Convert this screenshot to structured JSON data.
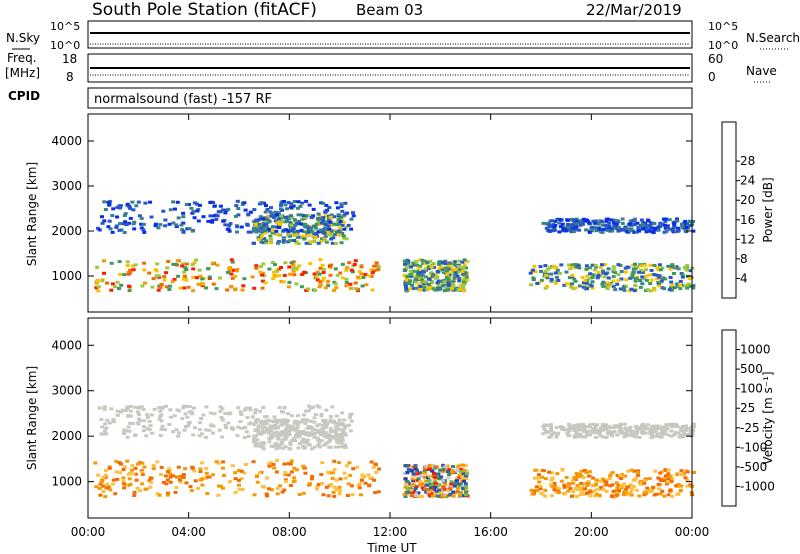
{
  "header": {
    "station": "South Pole Station (fitACF)",
    "beam": "Beam 03",
    "date": "22/Mar/2019"
  },
  "top_panels": {
    "nsky_label": "N.Sky",
    "nsky_ticks": [
      "10^5",
      "10^0"
    ],
    "nsearch_label": "N.Search",
    "nsearch_ticks": [
      "10^5",
      "10^0"
    ],
    "freq_label": "Freq.",
    "freq_unit": "[MHz]",
    "freq_ticks": [
      "18",
      "8"
    ],
    "nave_label": "Nave",
    "nave_ticks": [
      "60",
      "0"
    ],
    "cpid_label": "CPID",
    "cpid_text": "normalsound (fast) -157 RF"
  },
  "chart_data": [
    {
      "type": "heatmap",
      "name": "power",
      "xlabel": "",
      "ylabel": "Slant Range [km]",
      "y_ticks": [
        "1000",
        "2000",
        "3000",
        "4000"
      ],
      "ylim": [
        200,
        4600
      ],
      "xlim_hours": [
        0,
        24
      ],
      "colorbar": {
        "label": "Power [dB]",
        "ticks": [
          "4",
          "8",
          "12",
          "16",
          "20",
          "24",
          "28"
        ],
        "colors": [
          "#0a2ee8",
          "#2a55c8",
          "#3a7f8f",
          "#3f9a5a",
          "#9ec83c",
          "#f5c400",
          "#f59a00",
          "#f56a00",
          "#ff1a00"
        ]
      },
      "echo_regions": [
        {
          "t0": 0.2,
          "t1": 11.5,
          "r0": 700,
          "r1": 1400,
          "level": "high"
        },
        {
          "t0": 6.5,
          "t1": 10.2,
          "r0": 1750,
          "r1": 2400,
          "level": "mid"
        },
        {
          "t0": 0.3,
          "t1": 10.5,
          "r0": 2000,
          "r1": 2700,
          "level": "low"
        },
        {
          "t0": 17.5,
          "t1": 24.0,
          "r0": 700,
          "r1": 1300,
          "level": "mid"
        },
        {
          "t0": 18.0,
          "t1": 24.0,
          "r0": 2000,
          "r1": 2300,
          "level": "low"
        },
        {
          "t0": 12.5,
          "t1": 15.0,
          "r0": 700,
          "r1": 1400,
          "level": "mid"
        }
      ]
    },
    {
      "type": "heatmap",
      "name": "velocity",
      "xlabel": "Time UT",
      "ylabel": "Slant Range [km]",
      "y_ticks": [
        "1000",
        "2000",
        "3000",
        "4000"
      ],
      "x_ticks": [
        "00:00",
        "04:00",
        "08:00",
        "12:00",
        "16:00",
        "20:00",
        "00:00"
      ],
      "ylim": [
        200,
        4600
      ],
      "xlim_hours": [
        0,
        24
      ],
      "colorbar": {
        "label": "Velocity [m s⁻¹]",
        "ticks": [
          "1000",
          "500",
          "100",
          "25",
          "-25",
          "-100",
          "-500",
          "-1000"
        ],
        "colors": [
          "#2040c0",
          "#3060a0",
          "#3a8a70",
          "#70c040",
          "#c8c8c0",
          "#ffc040",
          "#f59a00",
          "#f56a00",
          "#ff1a00"
        ]
      },
      "echo_regions": [
        {
          "t0": 0.2,
          "t1": 11.5,
          "r0": 700,
          "r1": 1500,
          "level": "neg"
        },
        {
          "t0": 6.5,
          "t1": 10.2,
          "r0": 1750,
          "r1": 2400,
          "level": "zero"
        },
        {
          "t0": 0.3,
          "t1": 10.5,
          "r0": 2000,
          "r1": 2700,
          "level": "zero"
        },
        {
          "t0": 17.5,
          "t1": 24.0,
          "r0": 700,
          "r1": 1300,
          "level": "neg"
        },
        {
          "t0": 18.0,
          "t1": 24.0,
          "r0": 2000,
          "r1": 2300,
          "level": "zero"
        },
        {
          "t0": 12.5,
          "t1": 15.0,
          "r0": 700,
          "r1": 1400,
          "level": "mixed"
        }
      ]
    }
  ]
}
